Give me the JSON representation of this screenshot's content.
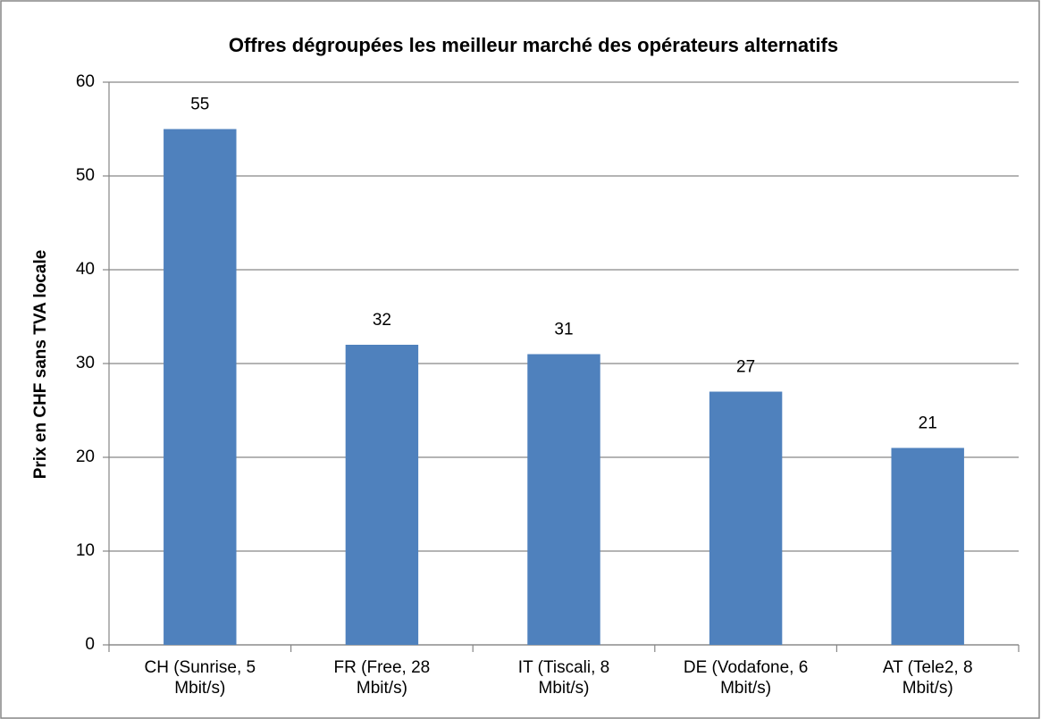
{
  "chart_data": {
    "type": "bar",
    "title": "Offres dégroupées les meilleur marché des opérateurs alternatifs",
    "y_label": "Prix en CHF sans TVA locale",
    "categories": [
      "CH (Sunrise, 5 Mbit/s)",
      "FR (Free, 28 Mbit/s)",
      "IT (Tiscali, 8 Mbit/s)",
      "DE (Vodafone, 6 Mbit/s)",
      "AT (Tele2, 8 Mbit/s)"
    ],
    "values": [
      55,
      32,
      31,
      27,
      21
    ],
    "color": "#4f81bd",
    "ylim": [
      0,
      60
    ],
    "yticks": [
      0,
      10,
      20,
      30,
      40,
      50,
      60
    ],
    "grid": true
  }
}
